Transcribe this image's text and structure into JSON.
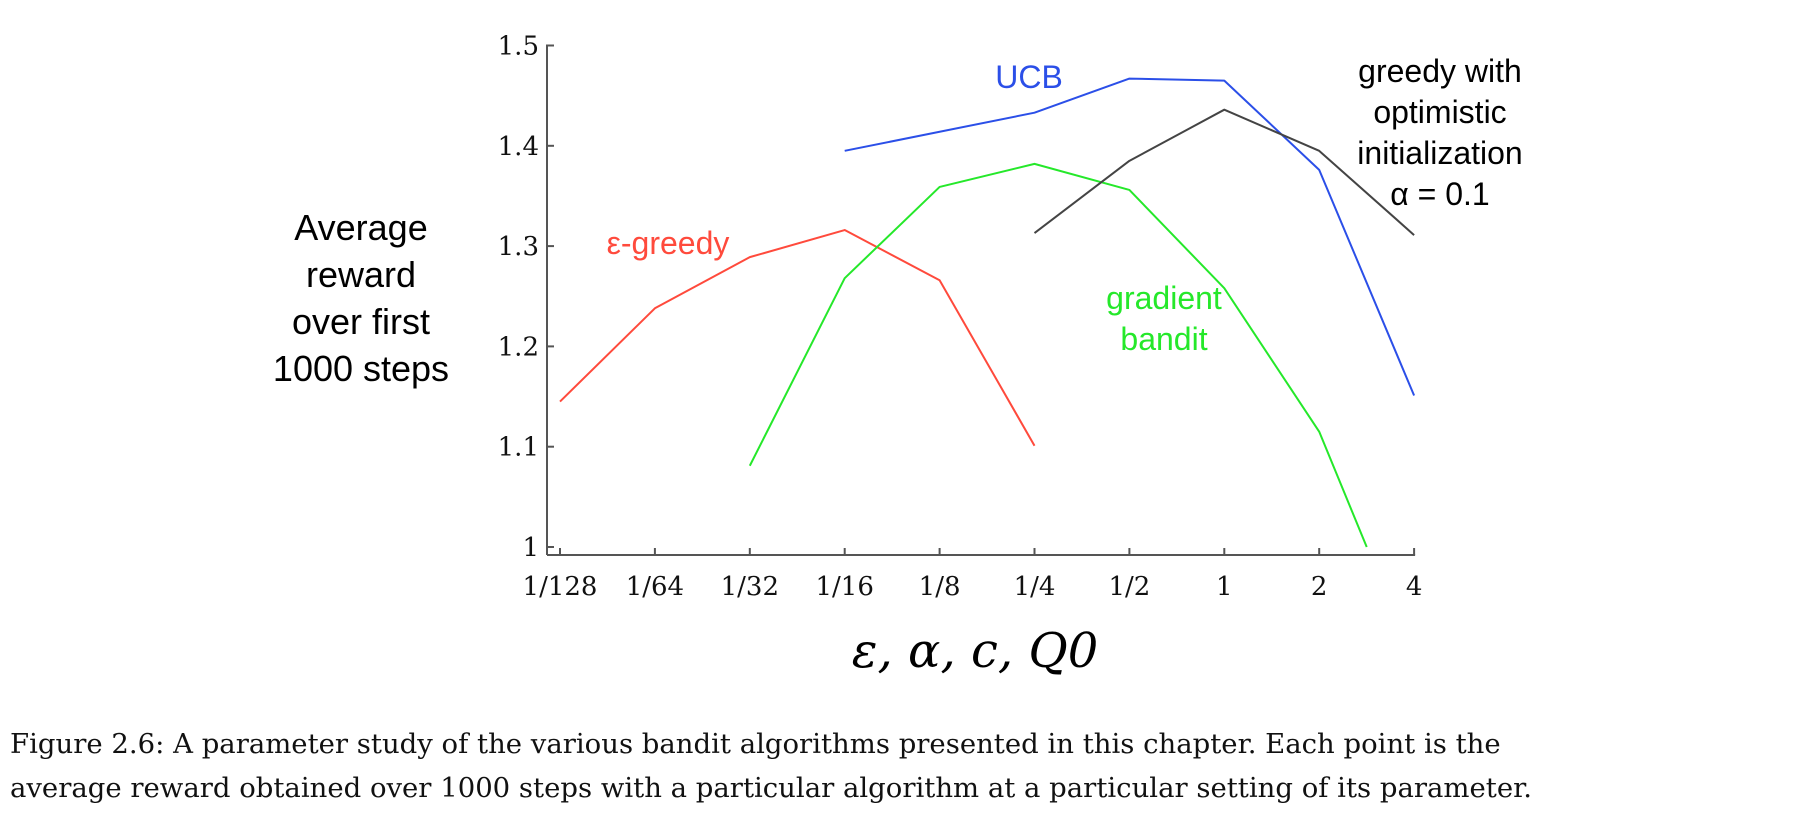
{
  "chart_data": {
    "type": "line",
    "categories": [
      "1/128",
      "1/64",
      "1/32",
      "1/16",
      "1/8",
      "1/4",
      "1/2",
      "1",
      "2",
      "4"
    ],
    "ylabel_lines": [
      "Average",
      "reward",
      "over first",
      "1000 steps"
    ],
    "xlabel": "ε,  α,  c,  Q0",
    "ylim": [
      1,
      1.5
    ],
    "yticks": [
      "1",
      "1.1",
      "1.2",
      "1.3",
      "1.4",
      "1.5"
    ],
    "grid": false,
    "series": [
      {
        "name": "ε-greedy",
        "label_lines": [
          "ε-greedy"
        ],
        "color": "#ff4a3c",
        "points": [
          {
            "x": "1/128",
            "y": 1.145
          },
          {
            "x": "1/64",
            "y": 1.238
          },
          {
            "x": "1/32",
            "y": 1.289
          },
          {
            "x": "1/16",
            "y": 1.316
          },
          {
            "x": "1/8",
            "y": 1.266
          },
          {
            "x": "1/4",
            "y": 1.101
          }
        ]
      },
      {
        "name": "gradient bandit",
        "label_lines": [
          "gradient",
          "bandit"
        ],
        "color": "#25e82a",
        "points": [
          {
            "x": "1/32",
            "y": 1.081
          },
          {
            "x": "1/16",
            "y": 1.268
          },
          {
            "x": "1/8",
            "y": 1.359
          },
          {
            "x": "1/4",
            "y": 1.382
          },
          {
            "x": "1/2",
            "y": 1.356
          },
          {
            "x": "1",
            "y": 1.258
          },
          {
            "x": "2",
            "y": 1.115
          },
          {
            "x": "2.83",
            "y": 1.0
          }
        ]
      },
      {
        "name": "UCB",
        "label_lines": [
          "UCB"
        ],
        "color": "#2b4fe8",
        "points": [
          {
            "x": "1/16",
            "y": 1.395
          },
          {
            "x": "1/4",
            "y": 1.433
          },
          {
            "x": "1/2",
            "y": 1.467
          },
          {
            "x": "1",
            "y": 1.465
          },
          {
            "x": "2",
            "y": 1.376
          },
          {
            "x": "4",
            "y": 1.151
          }
        ]
      },
      {
        "name": "greedy with optimistic initialization α = 0.1",
        "label_lines": [
          "greedy with",
          "optimistic",
          "initialization",
          "α = 0.1"
        ],
        "color": "#444444",
        "points": [
          {
            "x": "1/4",
            "y": 1.313
          },
          {
            "x": "1/2",
            "y": 1.385
          },
          {
            "x": "1",
            "y": 1.436
          },
          {
            "x": "2",
            "y": 1.395
          },
          {
            "x": "4",
            "y": 1.311
          }
        ]
      }
    ]
  },
  "caption": {
    "line1": "Figure 2.6: A parameter study of the various bandit algorithms presented in this chapter. Each point is the",
    "line2": "average reward obtained over 1000 steps with a particular algorithm at a particular setting of its parameter."
  }
}
